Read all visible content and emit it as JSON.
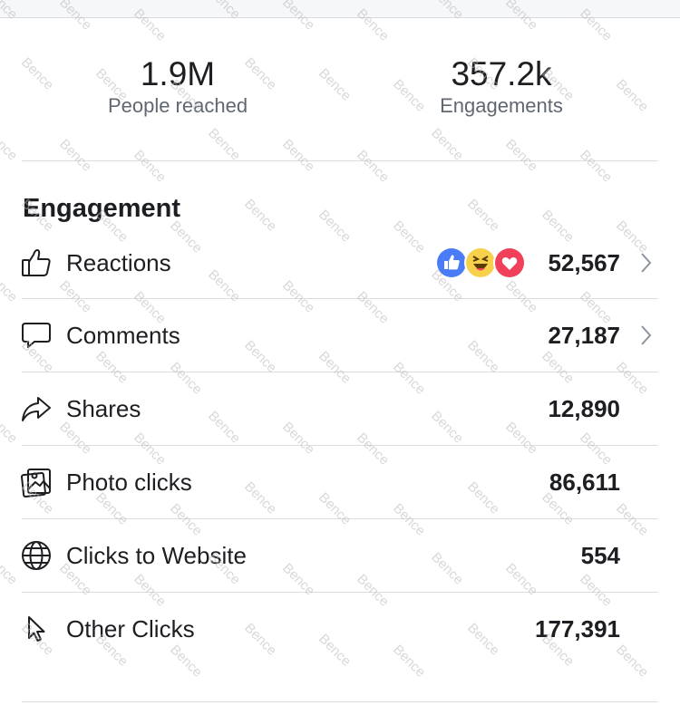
{
  "summary": {
    "people_reached": {
      "value": "1.9M",
      "label": "People reached"
    },
    "engagements": {
      "value": "357.2k",
      "label": "Engagements"
    }
  },
  "engagement": {
    "title": "Engagement",
    "rows": [
      {
        "label": "Reactions",
        "value": "52,567",
        "icon": "thumbs-up-icon",
        "has_chevron": true,
        "reactions": [
          "like",
          "haha",
          "love"
        ]
      },
      {
        "label": "Comments",
        "value": "27,187",
        "icon": "comment-bubble-icon",
        "has_chevron": true
      },
      {
        "label": "Shares",
        "value": "12,890",
        "icon": "share-arrow-icon",
        "has_chevron": false
      },
      {
        "label": "Photo clicks",
        "value": "86,611",
        "icon": "photo-icon",
        "has_chevron": false
      },
      {
        "label": "Clicks to Website",
        "value": "554",
        "icon": "globe-icon",
        "has_chevron": false
      },
      {
        "label": "Other Clicks",
        "value": "177,391",
        "icon": "cursor-icon",
        "has_chevron": false
      }
    ]
  },
  "watermark_text": "Bence",
  "colors": {
    "like_blue": "#4a7cf7",
    "haha_yellow": "#f7d14c",
    "love_red": "#f0405a",
    "text_primary": "#1c1e21",
    "text_secondary": "#606770",
    "divider": "#dadde1"
  }
}
